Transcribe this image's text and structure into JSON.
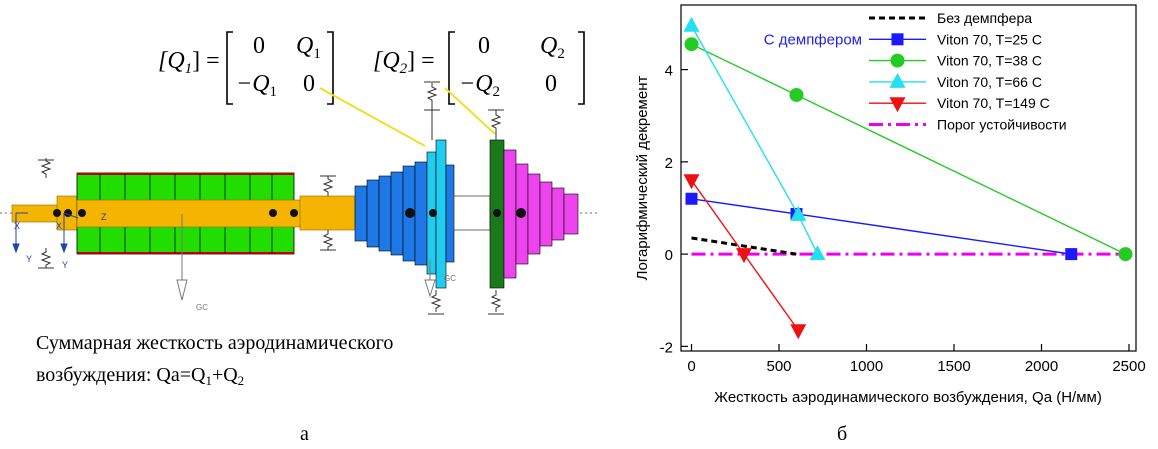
{
  "panel_a": {
    "matrix_q1": {
      "lhs": "[Q",
      "lhs_sub": "1",
      "lhs_end": "] =",
      "r1c1": "0",
      "r1c2": "Q",
      "r1c2_sub": "1",
      "r2c1": "−Q",
      "r2c1_sub": "1",
      "r2c2": "0"
    },
    "matrix_q2": {
      "lhs": "[Q",
      "lhs_sub": "2",
      "lhs_end": "] =",
      "r1c1": "0",
      "r1c2": "Q",
      "r1c2_sub": "2",
      "r2c1": "−Q",
      "r2c1_sub": "2",
      "r2c2": "0"
    },
    "axis_labels": {
      "x1": "X",
      "y1": "Y",
      "x2": "X",
      "y2": "Y",
      "z": "Z",
      "gc1": "GC",
      "gc2": "GC"
    },
    "caption_line1": "Суммарная жесткость аэродинамического",
    "caption_line2_prefix": "возбуждения: Qa=Q",
    "caption_sub1": "1",
    "caption_plus": "+Q",
    "caption_sub2": "2",
    "panel_label": "а",
    "colors": {
      "shaft": "#f5b400",
      "drum": "#22dd00",
      "disk1": "#1e78e6",
      "disk1_tip": "#22ccee",
      "disk2_dark": "#1a7a1a",
      "disk2": "#ee44ee",
      "leader": "#f0e020"
    }
  },
  "panel_b_label": "б",
  "legend_group_label": "С демпфером",
  "chart_data": {
    "type": "line",
    "xlabel": "Жесткость аэродинамического возбуждения, Qa  (Н/мм)",
    "ylabel": "Логарифмический декремент",
    "xlim": [
      -60,
      2540
    ],
    "ylim": [
      -2.1,
      5.4
    ],
    "xticks": [
      "0",
      "500",
      "1000",
      "1500",
      "2000",
      "2500"
    ],
    "yticks": [
      "-2",
      "0",
      "2",
      "4"
    ],
    "legend_position": "top-right",
    "series": [
      {
        "name": "Без демпфера",
        "color": "#000000",
        "dash": "6,4",
        "marker": "none",
        "x": [
          0,
          600
        ],
        "y": [
          0.35,
          0
        ]
      },
      {
        "name": "Viton 70, T=25 C",
        "color": "#1a1aff",
        "dash": "",
        "marker": "square",
        "x": [
          0,
          600,
          2170
        ],
        "y": [
          1.2,
          0.87,
          0
        ]
      },
      {
        "name": "Viton 70, T=38 C",
        "color": "#22cc22",
        "dash": "",
        "marker": "circle",
        "x": [
          0,
          600,
          2480
        ],
        "y": [
          4.55,
          3.45,
          0
        ]
      },
      {
        "name": "Viton 70, T=66 C",
        "color": "#22e0ee",
        "dash": "",
        "marker": "triangle-up",
        "x": [
          0,
          610,
          720
        ],
        "y": [
          4.95,
          0.85,
          0
        ]
      },
      {
        "name": "Viton 70, T=149 C",
        "color": "#ee1111",
        "dash": "",
        "marker": "triangle-down",
        "x": [
          0,
          300,
          610
        ],
        "y": [
          1.6,
          0,
          -1.65
        ]
      },
      {
        "name": "Порог устойчивости",
        "color": "#ee00ee",
        "dash": "14,5,3,5",
        "marker": "none",
        "x": [
          0,
          2480
        ],
        "y": [
          0,
          0
        ]
      }
    ]
  }
}
